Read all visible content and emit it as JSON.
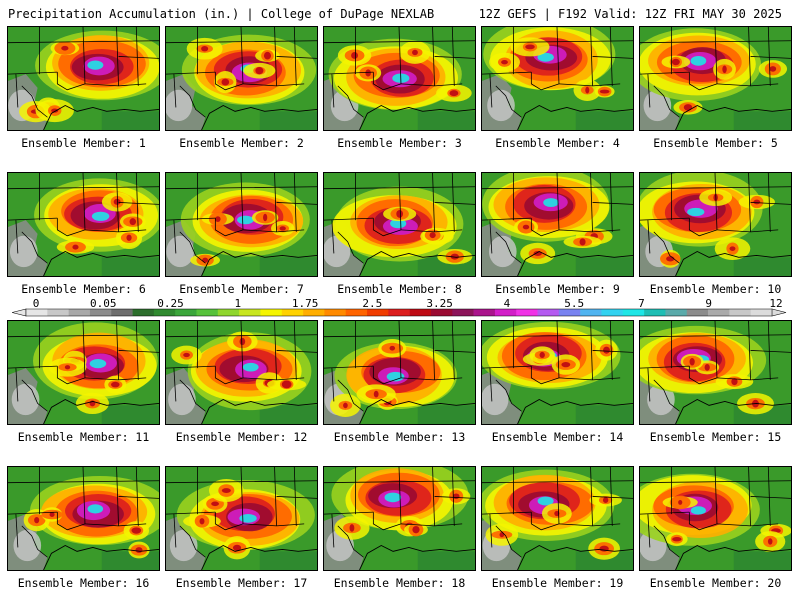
{
  "header": {
    "left": "Precipitation Accumulation (in.) | College of DuPage NEXLAB",
    "right": "12Z GEFS | F192 Valid: 12Z FRI MAY 30 2025"
  },
  "legend": {
    "labels": [
      "0",
      "0.05",
      "0.25",
      "1",
      "1.75",
      "2.5",
      "3.25",
      "4",
      "5.5",
      "7",
      "9",
      "12"
    ],
    "colors": [
      "#e6e6e6",
      "#c8c8c8",
      "#a8a8a8",
      "#8c8c8c",
      "#6e6e6e",
      "#2c6e2c",
      "#2f8a2f",
      "#3aa63a",
      "#56c23a",
      "#8fd62c",
      "#c8e61e",
      "#f5f500",
      "#ffd200",
      "#ffae00",
      "#ff8a00",
      "#ff6400",
      "#f03c00",
      "#dc1e1e",
      "#be0a14",
      "#9a0a32",
      "#8c145a",
      "#aa148c",
      "#d21ec8",
      "#f032e6",
      "#b45af0",
      "#7882f0",
      "#50b4f0",
      "#32d2f0",
      "#1ee6e6",
      "#1ebeb4",
      "#5aaaaa",
      "#8c8c8c",
      "#aaaaaa",
      "#c8c8c8",
      "#dcdcdc"
    ]
  },
  "panels": [
    {
      "label": "Ensemble Member: 1"
    },
    {
      "label": "Ensemble Member: 2"
    },
    {
      "label": "Ensemble Member: 3"
    },
    {
      "label": "Ensemble Member: 4"
    },
    {
      "label": "Ensemble Member: 5"
    },
    {
      "label": "Ensemble Member: 6"
    },
    {
      "label": "Ensemble Member: 7"
    },
    {
      "label": "Ensemble Member: 8"
    },
    {
      "label": "Ensemble Member: 9"
    },
    {
      "label": "Ensemble Member: 10"
    },
    {
      "label": "Ensemble Member: 11"
    },
    {
      "label": "Ensemble Member: 12"
    },
    {
      "label": "Ensemble Member: 13"
    },
    {
      "label": "Ensemble Member: 14"
    },
    {
      "label": "Ensemble Member: 15"
    },
    {
      "label": "Ensemble Member: 16"
    },
    {
      "label": "Ensemble Member: 17"
    },
    {
      "label": "Ensemble Member: 18"
    },
    {
      "label": "Ensemble Member: 19"
    },
    {
      "label": "Ensemble Member: 20"
    }
  ]
}
